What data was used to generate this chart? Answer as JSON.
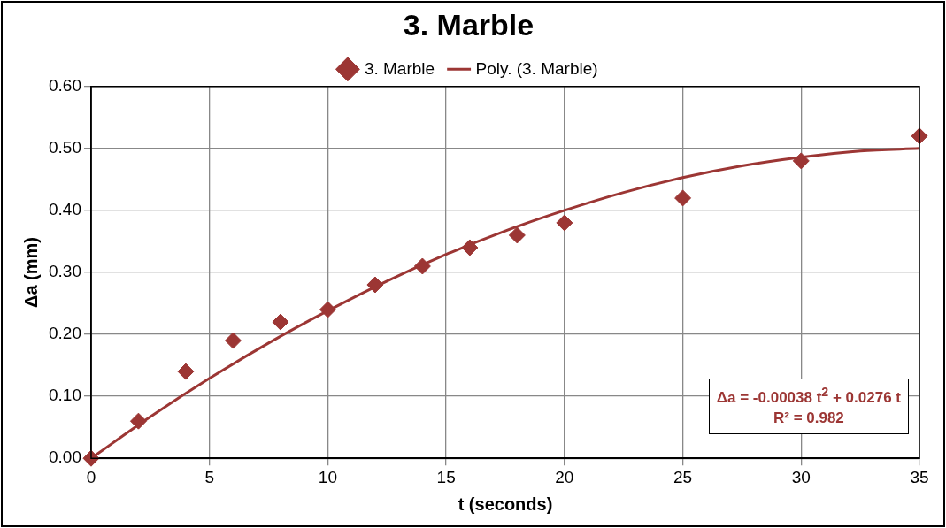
{
  "chart_data": {
    "type": "scatter",
    "title": "3. Marble",
    "xlabel": "t (seconds)",
    "ylabel": "Δa (mm)",
    "xlim": [
      0,
      35
    ],
    "xticks": [
      0,
      5,
      10,
      15,
      20,
      25,
      30,
      35
    ],
    "ylim": [
      0,
      0.6
    ],
    "yticks": [
      {
        "value": 0,
        "label": "0.00"
      },
      {
        "value": 0.1,
        "label": "0.10"
      },
      {
        "value": 0.2,
        "label": "0.20"
      },
      {
        "value": 0.3,
        "label": "0.30"
      },
      {
        "value": 0.4,
        "label": "0.40"
      },
      {
        "value": 0.5,
        "label": "0.50"
      },
      {
        "value": 0.6,
        "label": "0.60"
      }
    ],
    "grid": true,
    "legend": "top",
    "series": [
      {
        "name": "3. Marble",
        "marker": "diamond",
        "color": "#9c3634",
        "x": [
          0,
          2,
          4,
          6,
          8,
          10,
          12,
          14,
          16,
          18,
          20,
          25,
          30,
          35
        ],
        "values": [
          0,
          0.06,
          0.14,
          0.19,
          0.22,
          0.24,
          0.28,
          0.31,
          0.34,
          0.36,
          0.38,
          0.42,
          0.48,
          0.52
        ]
      },
      {
        "name": "Poly. (3. Marble)",
        "type": "line",
        "marker": "none",
        "line_style": "solid",
        "color": "#9c3634",
        "x": [
          0,
          2.5,
          5,
          7.5,
          10,
          12.5,
          15,
          17.5,
          20,
          22.5,
          25,
          27.5,
          30,
          32.5,
          35
        ],
        "values": [
          0,
          0.067,
          0.129,
          0.186,
          0.238,
          0.286,
          0.329,
          0.367,
          0.4,
          0.429,
          0.453,
          0.472,
          0.486,
          0.496,
          0.5
        ]
      }
    ],
    "annotations": [
      "Δa = -0.00038 t$^{2}$ + 0.0276 t",
      "R² = 0.982"
    ]
  }
}
